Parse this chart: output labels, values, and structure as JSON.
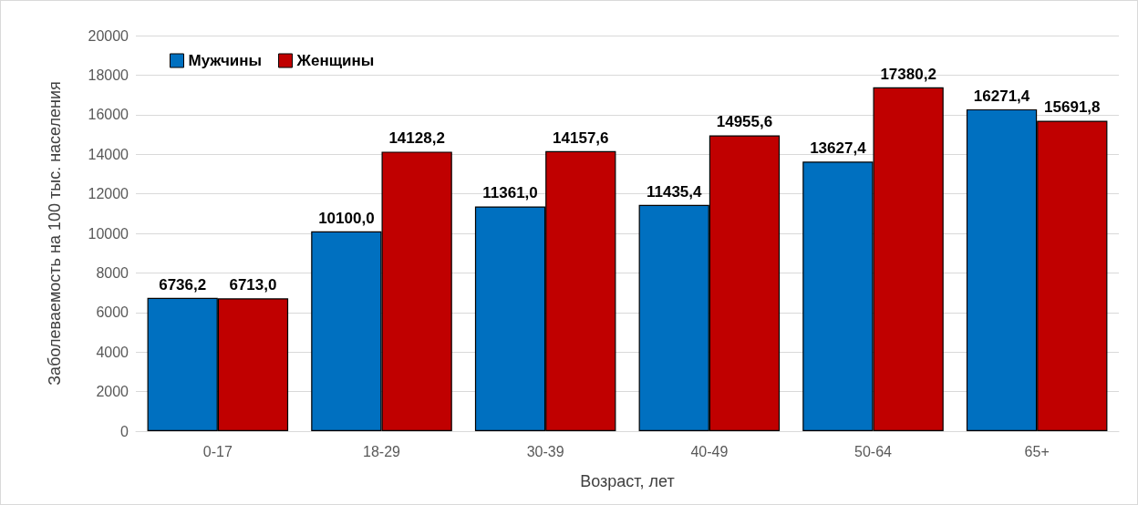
{
  "chart_data": {
    "type": "bar",
    "xlabel": "Возраст, лет",
    "ylabel": "Заболеваемость на 100 тыс. населения",
    "categories": [
      "0-17",
      "18-29",
      "30-39",
      "40-49",
      "50-64",
      "65+"
    ],
    "series": [
      {
        "name": "Мужчины",
        "color": "#0070c0",
        "values": [
          6736.2,
          10100.0,
          11361.0,
          11435.4,
          13627.4,
          16271.4
        ],
        "value_labels": [
          "6736,2",
          "10100,0",
          "11361,0",
          "11435,4",
          "13627,4",
          "16271,4"
        ]
      },
      {
        "name": "Женщины",
        "color": "#c00000",
        "values": [
          6713.0,
          14128.2,
          14157.6,
          14955.6,
          17380.2,
          15691.8
        ],
        "value_labels": [
          "6713,0",
          "14128,2",
          "14157,6",
          "14955,6",
          "17380,2",
          "15691,8"
        ]
      }
    ],
    "ylim": [
      0,
      20000
    ],
    "yticks": [
      0,
      2000,
      4000,
      6000,
      8000,
      10000,
      12000,
      14000,
      16000,
      18000,
      20000
    ],
    "grid": "y",
    "legend": "top left"
  }
}
